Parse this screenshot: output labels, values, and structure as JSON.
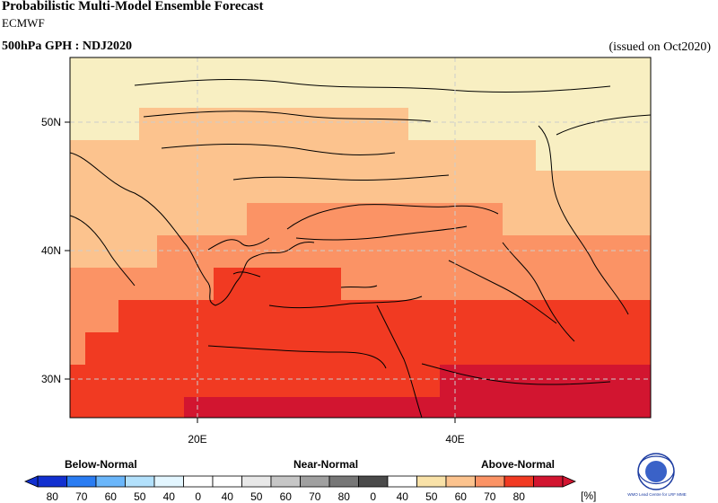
{
  "header": {
    "title": "Probabilistic Multi-Model Ensemble Forecast",
    "model": "ECMWF",
    "variable": "500hPa GPH : NDJ2020",
    "issued": "(issued on Oct2020)"
  },
  "map": {
    "lat_labels": [
      "50N",
      "40N",
      "30N"
    ],
    "lon_labels": [
      "20E",
      "40E"
    ],
    "gridlines": "dashed",
    "colors": {
      "band_40_50": "#f9e2a8",
      "band_50_60": "#fcc38e",
      "band_60_70": "#fb9365",
      "band_70_80": "#f13a22",
      "band_80_plus": "#d21530",
      "top_band": "#f8efc2"
    }
  },
  "legend": {
    "categories": [
      "Below-Normal",
      "Near-Normal",
      "Above-Normal"
    ],
    "labels": [
      "80",
      "70",
      "60",
      "50",
      "40",
      "0",
      "40",
      "50",
      "60",
      "70",
      "80",
      "0",
      "40",
      "50",
      "60",
      "70",
      "80",
      "[%]"
    ],
    "colors": [
      "#1230d0",
      "#2a7cf2",
      "#6ab6fa",
      "#b3e1fc",
      "#e3f6ff",
      "#ffffff",
      "#ffffff",
      "#e8e8e8",
      "#c6c6c6",
      "#a0a0a0",
      "#777777",
      "#4a4a4a",
      "#ffffff",
      "#f9e2a8",
      "#fcc38e",
      "#fb9365",
      "#f13a22",
      "#d21530"
    ]
  },
  "logo": {
    "text": "WMO Lead Centre for LRF MME"
  }
}
